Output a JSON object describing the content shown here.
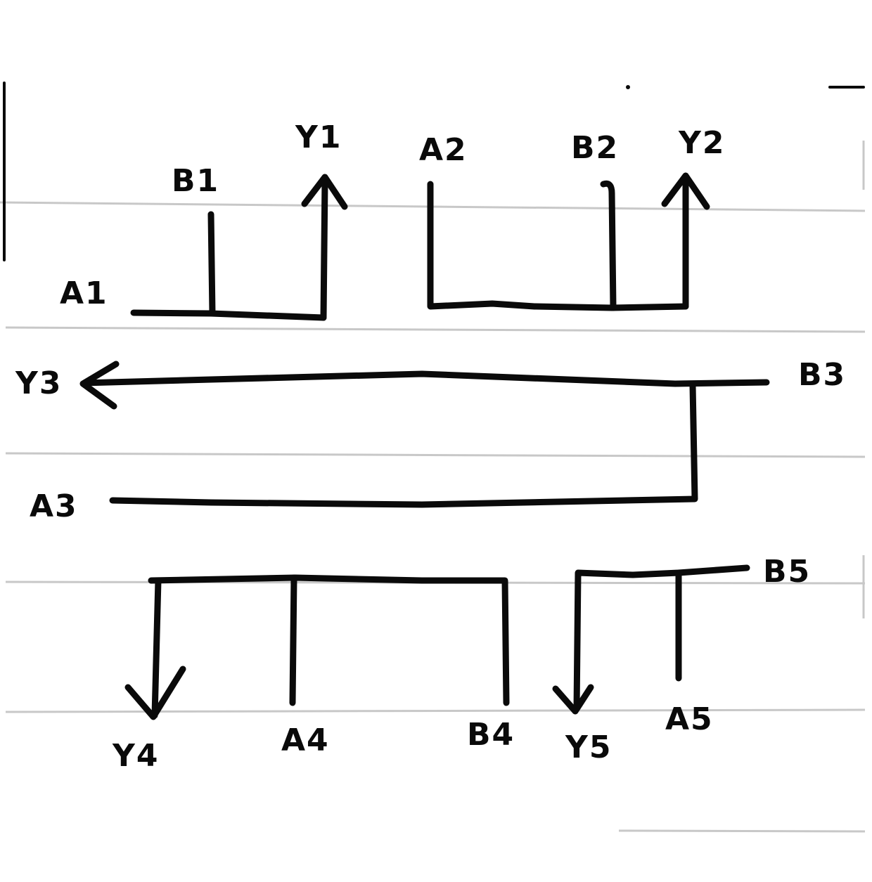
{
  "colors": {
    "ink": "#0a0a0a",
    "ruled_line": "#c8c8c8",
    "paper": "#ffffff"
  },
  "labels": {
    "b1": "B1",
    "y1": "Y1",
    "a1": "A1",
    "a2": "A2",
    "b2": "B2",
    "y2": "Y2",
    "y3": "Y3",
    "b3": "B3",
    "a3": "A3",
    "b5": "B5",
    "y4": "Y4",
    "a4": "A4",
    "b4": "B4",
    "y5": "Y5",
    "a5": "A5"
  }
}
